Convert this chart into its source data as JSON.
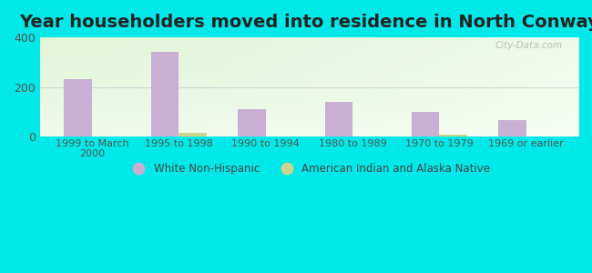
{
  "title": "Year householders moved into residence in North Conway",
  "categories": [
    "1999 to March\n2000",
    "1995 to 1998",
    "1990 to 1994",
    "1980 to 1989",
    "1970 to 1979",
    "1969 or earlier"
  ],
  "white_non_hispanic": [
    230,
    340,
    110,
    140,
    100,
    68
  ],
  "american_indian": [
    0,
    14,
    0,
    0,
    6,
    0
  ],
  "bar_color_white": "#c9afd4",
  "bar_color_indian": "#ccd68a",
  "ylim": [
    0,
    400
  ],
  "yticks": [
    0,
    200,
    400
  ],
  "background_outer": "#00e8e8",
  "title_fontsize": 14,
  "bar_width": 0.32,
  "legend_label_white": "White Non-Hispanic",
  "legend_label_indian": "American Indian and Alaska Native",
  "watermark": "City-Data.com"
}
